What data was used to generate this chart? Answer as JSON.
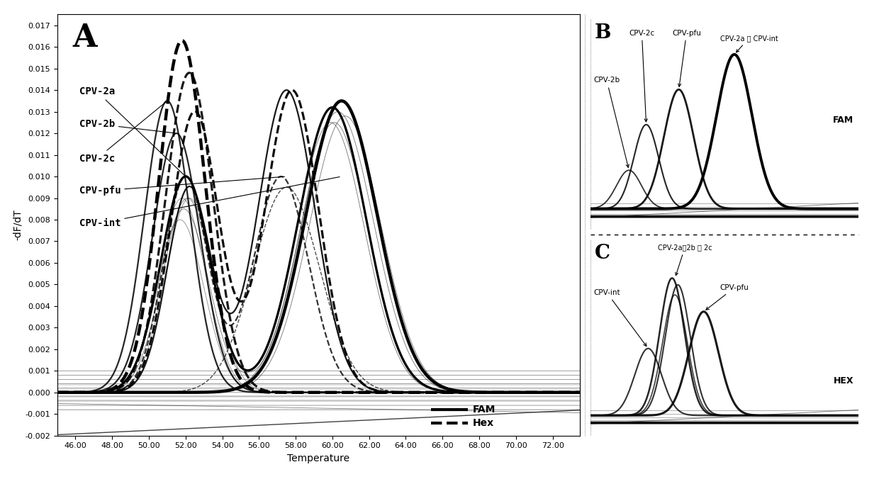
{
  "title_A": "A",
  "title_B": "B",
  "title_C": "C",
  "xlabel": "Temperature",
  "ylabel": "-dF/dT",
  "xlim": [
    45.0,
    73.5
  ],
  "ylim": [
    -0.002,
    0.0175
  ],
  "yticks": [
    -0.002,
    -0.001,
    0.0,
    0.001,
    0.002,
    0.003,
    0.004,
    0.005,
    0.006,
    0.007,
    0.008,
    0.009,
    0.01,
    0.011,
    0.012,
    0.013,
    0.014,
    0.015,
    0.016,
    0.017
  ],
  "xticks": [
    46.0,
    48.0,
    50.0,
    52.0,
    54.0,
    56.0,
    58.0,
    60.0,
    62.0,
    64.0,
    66.0,
    68.0,
    70.0,
    72.0
  ],
  "labels": [
    "CPV-2a",
    "CPV-2b",
    "CPV-2c",
    "CPV-pfu",
    "CPV-int"
  ],
  "legend_FAM": "FAM",
  "legend_Hex": "Hex"
}
